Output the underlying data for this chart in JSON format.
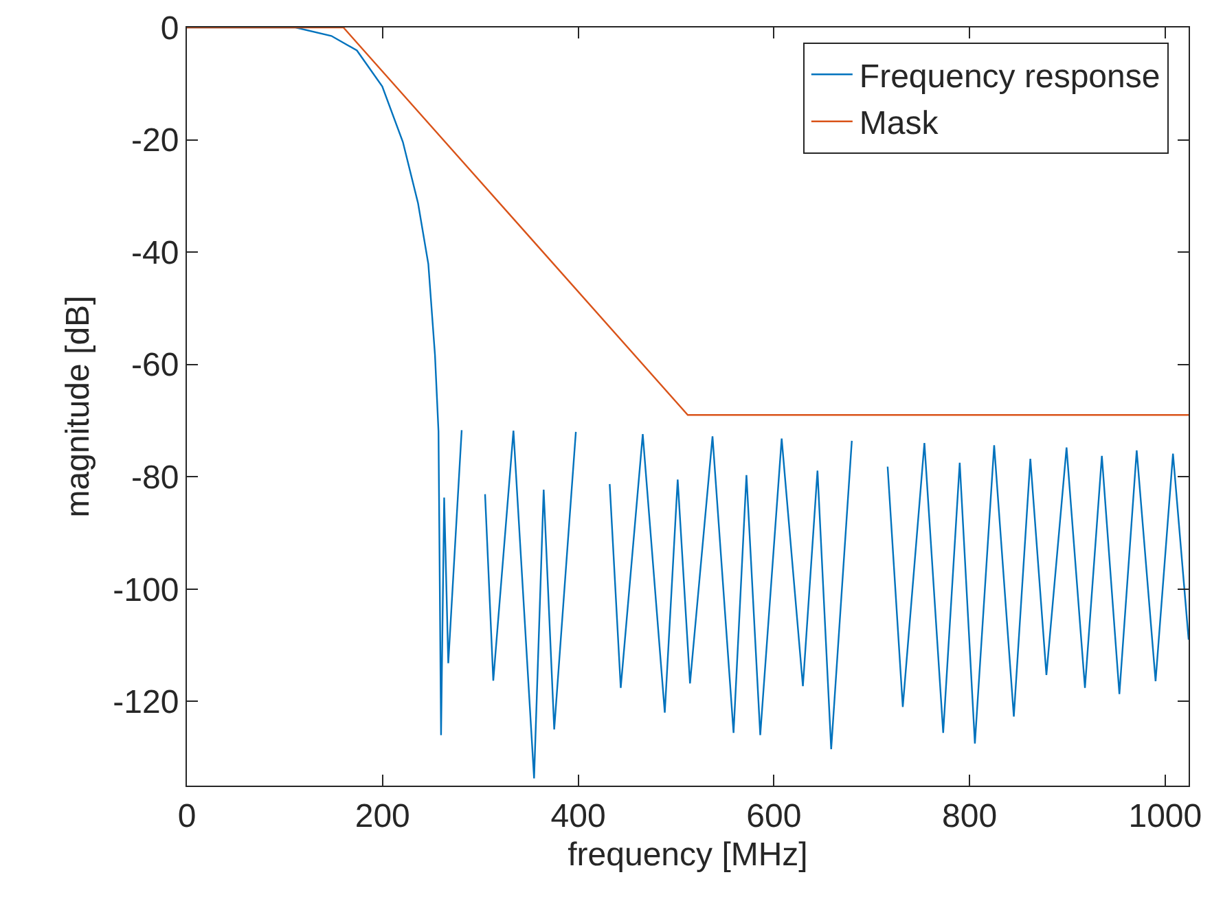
{
  "chart_data": {
    "type": "line",
    "xlabel": "frequency [MHz]",
    "ylabel": "magnitude [dB]",
    "xlim": [
      0,
      1024
    ],
    "xticks": [
      0,
      200,
      400,
      600,
      800,
      1000
    ],
    "ylim": [
      -135,
      0
    ],
    "yticks": [
      0,
      -20,
      -40,
      -60,
      -80,
      -100,
      -120
    ],
    "grid": false,
    "legend": "top right",
    "marker": "none",
    "line_style": "solid",
    "series": [
      {
        "name": "Frequency response",
        "color": "#0072bd",
        "x": [
          0,
          111,
          147.7,
          173.8,
          199.7,
          220.8,
          236.3,
          246.8,
          253.6,
          255.6,
          257.2,
          259.8,
          263,
          267.2,
          280.9,
          296.8,
          304.8,
          313.2,
          333.8,
          354.9,
          364.7,
          375.5,
          397.6,
          420.1,
          432.2,
          443.5,
          466,
          488.5,
          501.7,
          514.3,
          537.3,
          558.8,
          572,
          586.1,
          608,
          629.7,
          644.6,
          658.6,
          679.7,
          701.8,
          716.3,
          731.8,
          753.9,
          773.1,
          790,
          805.5,
          825.2,
          845.3,
          862.2,
          878.6,
          899.2,
          918,
          935.3,
          953.2,
          970.9,
          990.2,
          1008,
          1024
        ],
        "values": [
          0,
          0,
          -1.5,
          -4.1,
          -10.5,
          -20.4,
          -31.3,
          -42.1,
          -58.3,
          -65.9,
          -71.9,
          -126,
          -83.7,
          -113.2,
          -71.7,
          null,
          -83.1,
          -116.3,
          -71.8,
          -133.7,
          -82.3,
          -125,
          -72,
          null,
          -81.3,
          -117.6,
          -72.4,
          -122,
          -80.5,
          -116.8,
          -72.8,
          -125.6,
          -79.7,
          -126,
          -73.2,
          -117.3,
          -78.9,
          -128.5,
          -73.6,
          null,
          -78.2,
          -121,
          -74,
          -125.6,
          -77.5,
          -127.5,
          -74.4,
          -122.7,
          -76.8,
          -115.3,
          -74.8,
          -117.6,
          -76.3,
          -118.7,
          -75.3,
          -116.4,
          -75.9,
          -109
        ]
      },
      {
        "name": "Mask",
        "color": "#d95319",
        "x": [
          0,
          160,
          512,
          1024
        ],
        "values": [
          0,
          0,
          -69,
          -69
        ]
      }
    ]
  }
}
